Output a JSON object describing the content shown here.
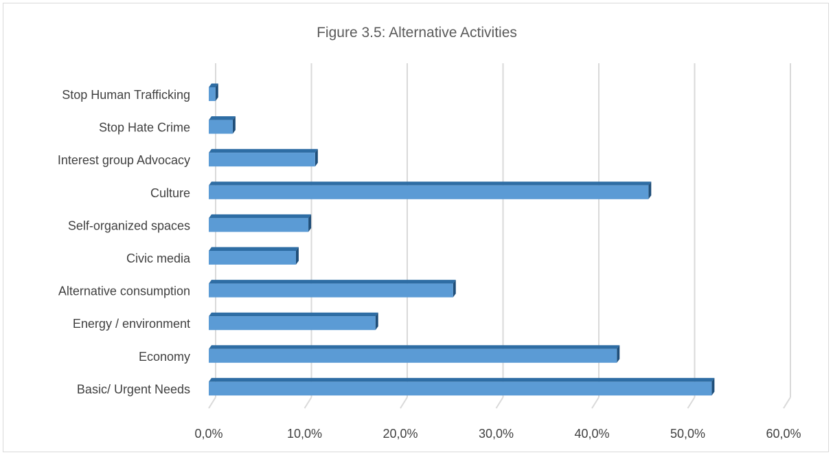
{
  "chart_data": {
    "type": "bar",
    "orientation": "horizontal",
    "style": "3d",
    "title": "Figure 3.5: Alternative Activities",
    "xlabel": "",
    "ylabel": "",
    "categories": [
      "Stop Human Trafficking",
      "Stop Hate Crime",
      "Interest group Advocacy",
      "Culture",
      "Self-organized spaces",
      "Civic media",
      "Alternative consumption",
      "Energy / environment",
      "Economy",
      "Basic/ Urgent Needs"
    ],
    "values": [
      0.7,
      2.5,
      11.1,
      45.9,
      10.4,
      9.1,
      25.5,
      17.4,
      42.6,
      52.5
    ],
    "xlim": [
      0,
      60
    ],
    "xticks": [
      "0,0%",
      "10,0%",
      "20,0%",
      "30,0%",
      "40,0%",
      "50,0%",
      "60,0%"
    ],
    "grid": true,
    "colors": {
      "bar_front": "#5b9bd5",
      "bar_top": "#2e6da4",
      "bar_side": "#1f4e79",
      "grid": "#d9d9d9"
    }
  }
}
